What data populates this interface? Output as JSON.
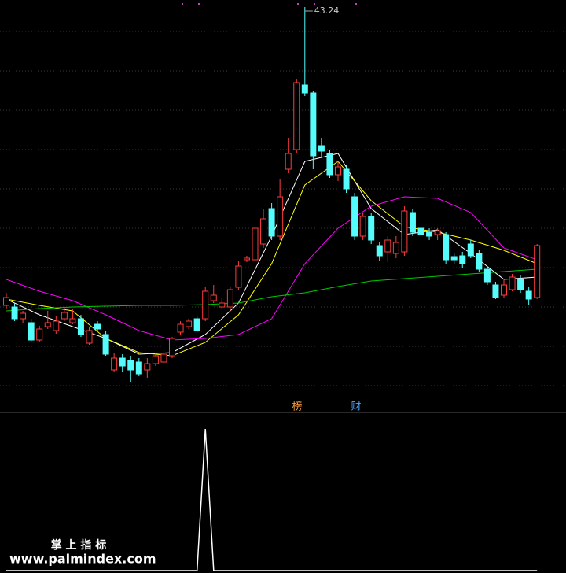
{
  "chart_data": [
    {
      "type": "candlestick",
      "open": [
        28.08,
        28.0,
        27.4,
        27.2,
        26.32,
        27.0,
        26.8,
        27.4,
        27.2,
        27.4,
        26.16,
        27.12,
        26.6,
        24.8,
        25.4,
        25.28,
        25.2,
        24.8,
        25.12,
        25.2,
        25.52,
        26.72,
        27.0,
        27.4,
        27.4,
        28.32,
        28.0,
        28.0,
        29.0,
        30.4,
        30.4,
        31.2,
        33.0,
        31.6,
        35.0,
        36.0,
        39.28,
        38.88,
        36.2,
        35.8,
        34.72,
        35.0,
        33.6,
        31.6,
        32.6,
        31.12,
        30.8,
        30.72,
        30.8,
        32.8,
        32.0,
        31.8,
        31.68,
        31.68,
        30.56,
        30.6,
        31.2,
        30.72,
        29.92,
        29.12,
        28.6,
        28.88,
        29.4,
        28.8,
        28.48
      ],
      "high": [
        28.72,
        28.2,
        27.8,
        27.4,
        27.04,
        27.8,
        27.52,
        28.0,
        27.92,
        27.6,
        27.0,
        27.28,
        26.8,
        25.68,
        25.6,
        25.52,
        25.4,
        25.4,
        25.68,
        25.8,
        26.48,
        27.28,
        27.4,
        27.52,
        29.0,
        29.12,
        28.48,
        29.0,
        30.32,
        30.6,
        32.2,
        33.0,
        33.28,
        34.48,
        36.6,
        39.6,
        43.24,
        39.0,
        36.6,
        36.0,
        35.4,
        35.2,
        33.8,
        32.8,
        32.8,
        31.28,
        31.6,
        31.6,
        33.12,
        33.0,
        32.2,
        32.0,
        32.0,
        31.8,
        30.72,
        30.8,
        31.4,
        30.88,
        30.08,
        29.28,
        29.4,
        29.68,
        29.6,
        29.0,
        31.2
      ],
      "low": [
        27.92,
        27.28,
        27.2,
        26.24,
        26.24,
        26.88,
        26.64,
        27.28,
        27.12,
        26.48,
        26.08,
        26.72,
        25.52,
        24.72,
        24.72,
        24.2,
        24.48,
        24.4,
        25.0,
        25.12,
        25.4,
        26.6,
        26.88,
        26.72,
        27.28,
        28.2,
        27.92,
        27.8,
        28.88,
        30.28,
        30.2,
        31.0,
        31.4,
        31.4,
        34.8,
        35.8,
        38.72,
        35.0,
        35.6,
        34.56,
        34.4,
        33.8,
        31.4,
        31.4,
        31.2,
        30.32,
        30.28,
        30.48,
        30.6,
        31.6,
        31.4,
        31.4,
        31.4,
        30.2,
        30.2,
        30.0,
        30.48,
        29.8,
        29.12,
        28.4,
        28.48,
        28.8,
        28.72,
        28.08,
        28.4
      ],
      "close": [
        28.48,
        27.4,
        27.68,
        26.32,
        26.88,
        27.2,
        27.28,
        27.72,
        27.4,
        26.6,
        26.8,
        26.88,
        25.6,
        25.4,
        25.0,
        24.8,
        24.6,
        25.12,
        25.52,
        25.6,
        26.4,
        27.12,
        27.28,
        26.8,
        28.8,
        28.6,
        28.2,
        28.88,
        30.08,
        30.48,
        32.0,
        32.48,
        31.6,
        33.6,
        35.8,
        39.4,
        38.88,
        35.68,
        35.92,
        34.72,
        35.12,
        34.0,
        31.6,
        32.6,
        31.4,
        30.6,
        31.4,
        31.28,
        32.88,
        31.8,
        31.68,
        31.6,
        31.88,
        30.4,
        30.4,
        30.2,
        30.6,
        29.92,
        29.28,
        28.48,
        29.12,
        29.52,
        28.88,
        28.4,
        31.12
      ],
      "up_color": "#ff3c3c",
      "down_color": "#54fcfc",
      "ylim": [
        23.6,
        43.6
      ],
      "yticks": [
        24,
        26,
        28,
        30,
        32,
        34,
        36,
        38,
        40,
        42
      ],
      "grid": true,
      "lines": [
        {
          "color": "#ffffff",
          "x": [
            0,
            4,
            8,
            12,
            16,
            20,
            24,
            28,
            32,
            36,
            40,
            44,
            48,
            52,
            56,
            60,
            64
          ],
          "values": [
            28.4,
            27.6,
            27.0,
            26.4,
            25.6,
            25.68,
            26.6,
            28.2,
            31.6,
            35.4,
            35.8,
            33.0,
            31.68,
            31.92,
            30.72,
            29.4,
            29.52
          ]
        },
        {
          "color": "#ffff00",
          "x": [
            0,
            4,
            8,
            12,
            16,
            20,
            24,
            28,
            32,
            36,
            40,
            44,
            48,
            52,
            56,
            60,
            64
          ],
          "values": [
            28.4,
            28.08,
            27.8,
            26.4,
            25.68,
            25.52,
            26.2,
            27.6,
            30.2,
            34.2,
            35.4,
            33.4,
            32.08,
            31.8,
            31.4,
            30.88,
            30.2
          ]
        },
        {
          "color": "#ff00ff",
          "x": [
            0,
            4,
            8,
            12,
            16,
            20,
            24,
            28,
            32,
            36,
            40,
            44,
            48,
            52,
            56,
            60,
            64
          ],
          "values": [
            29.4,
            28.8,
            28.32,
            27.6,
            26.8,
            26.32,
            26.4,
            26.6,
            27.4,
            30.2,
            32.0,
            33.12,
            33.6,
            33.52,
            32.8,
            31.0,
            30.4
          ]
        },
        {
          "color": "#00c800",
          "x": [
            0,
            4,
            8,
            12,
            16,
            20,
            24,
            28,
            32,
            36,
            40,
            44,
            48,
            52,
            56,
            60,
            64
          ],
          "values": [
            27.8,
            27.92,
            28.0,
            28.04,
            28.08,
            28.08,
            28.12,
            28.2,
            28.52,
            28.72,
            29.04,
            29.32,
            29.44,
            29.56,
            29.68,
            29.8,
            29.92
          ]
        }
      ]
    },
    {
      "type": "line",
      "color": "#ffffff",
      "ylim": [
        0,
        1
      ],
      "values": [
        0,
        0,
        0,
        0,
        0,
        0,
        0,
        0,
        0,
        0,
        0,
        0,
        0,
        0,
        0,
        0,
        0,
        0,
        0,
        0,
        0,
        0,
        0,
        0,
        1,
        0,
        0,
        0,
        0,
        0,
        0,
        0,
        0,
        0,
        0,
        0,
        0,
        0,
        0,
        0,
        0,
        0,
        0,
        0,
        0,
        0,
        0,
        0,
        0,
        0,
        0,
        0,
        0,
        0,
        0,
        0,
        0,
        0,
        0,
        0,
        0,
        0,
        0,
        0,
        0
      ]
    }
  ],
  "markers": [
    "榜",
    "财"
  ],
  "watermark": {
    "title": "掌 上 指 标",
    "url": "www.palmindex.com"
  }
}
